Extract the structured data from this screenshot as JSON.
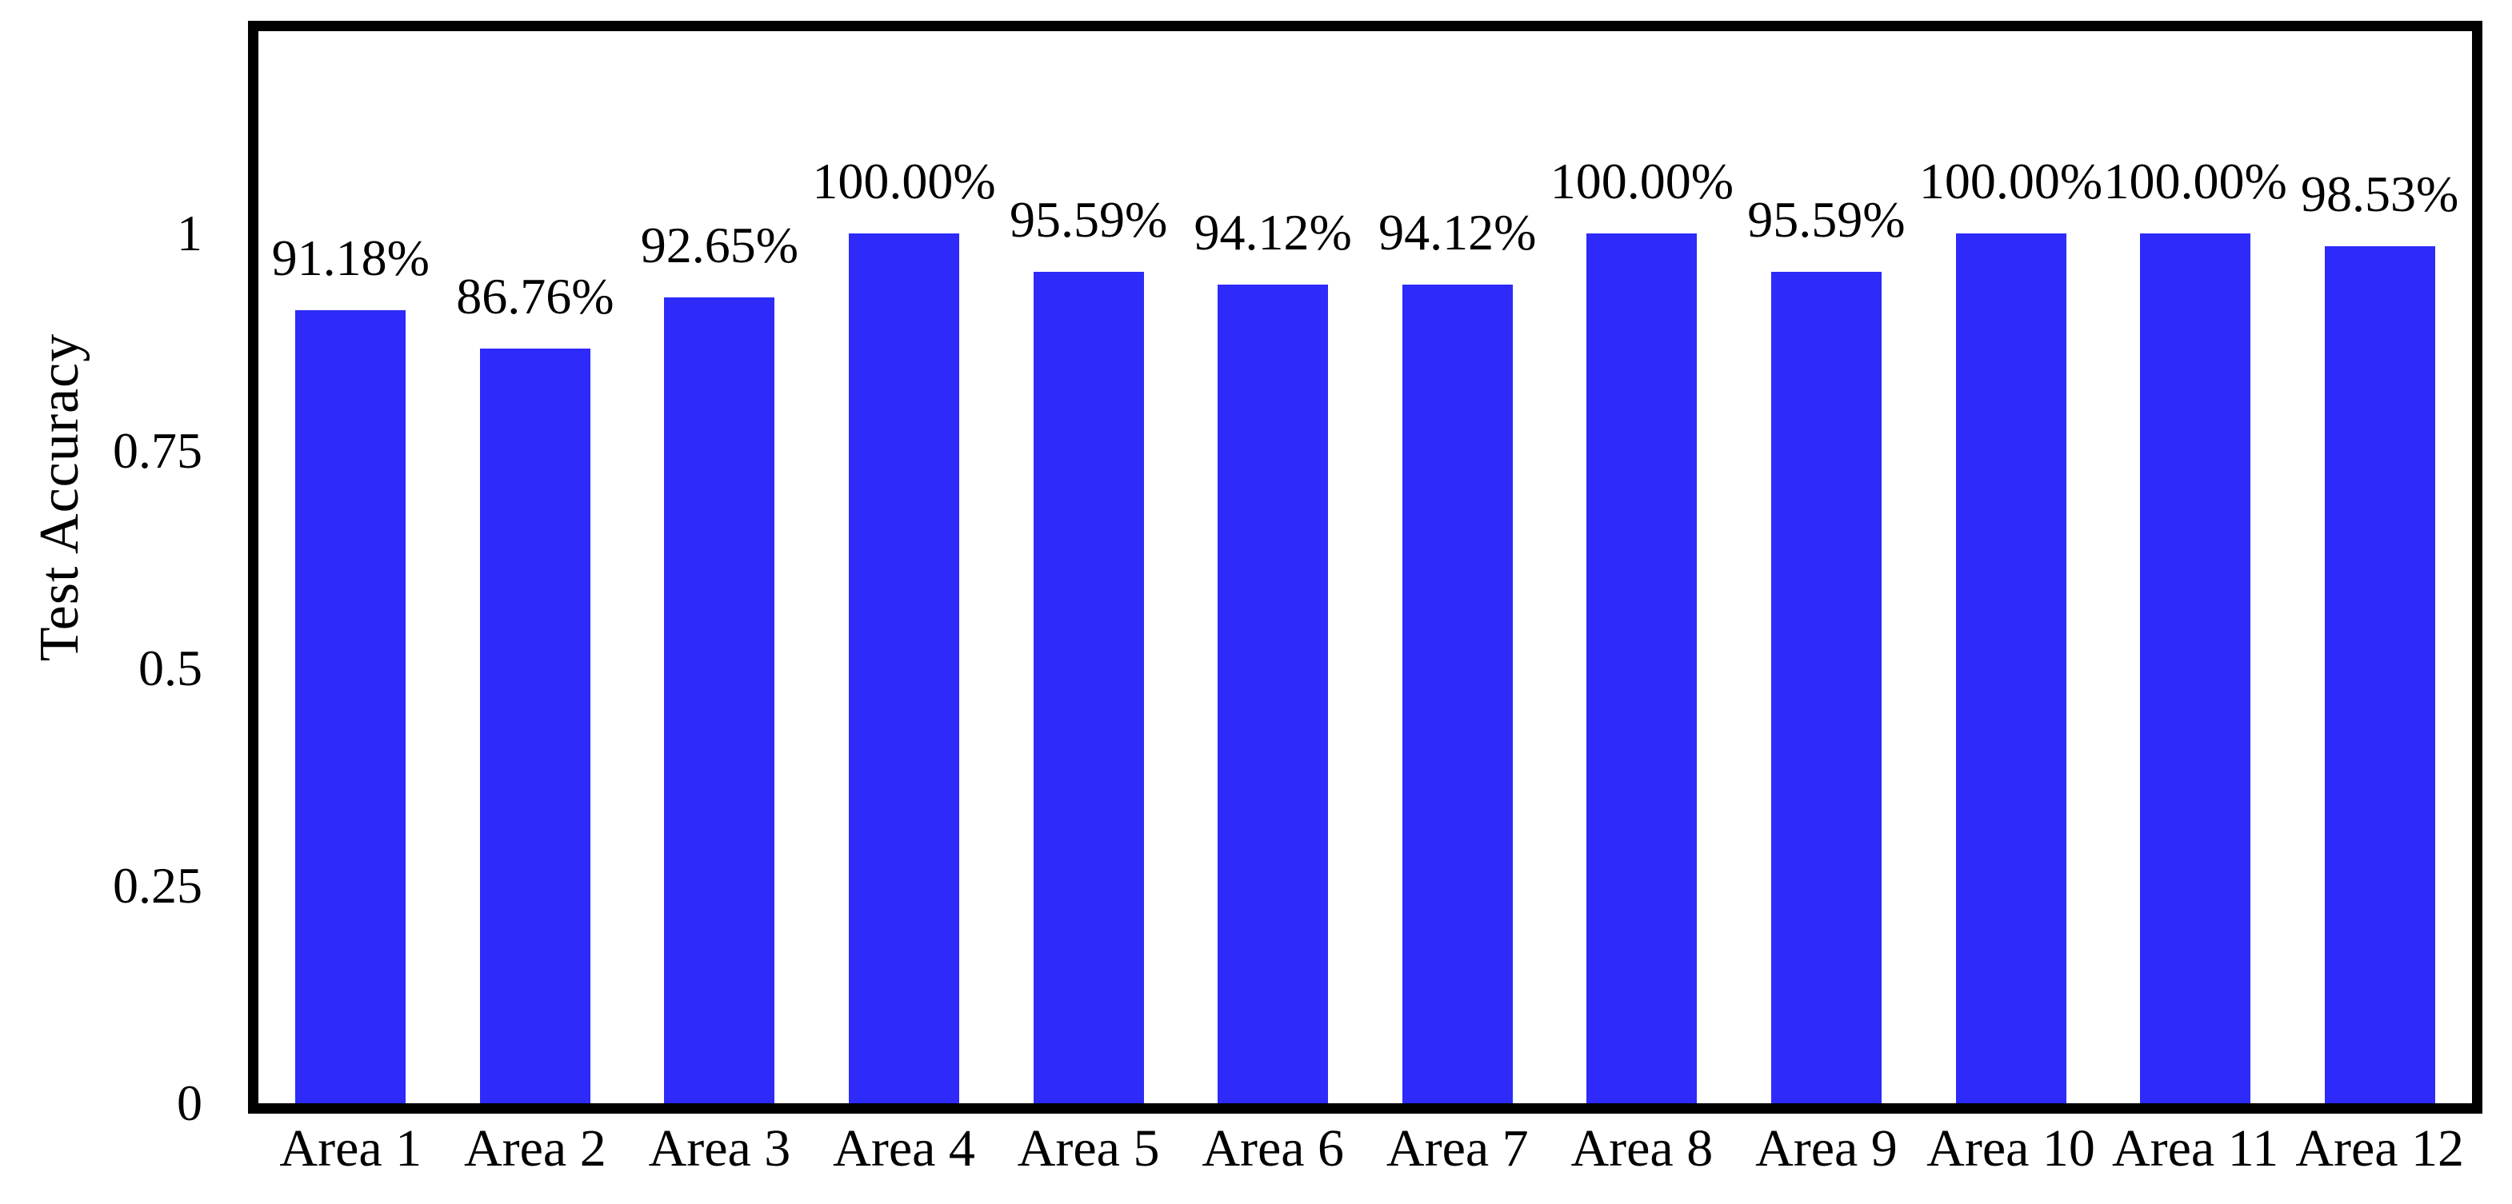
{
  "chart_data": {
    "type": "bar",
    "title": "",
    "xlabel": "",
    "ylabel": "Test Accuracy",
    "categories": [
      "Area 1",
      "Area 2",
      "Area 3",
      "Area 4",
      "Area 5",
      "Area 6",
      "Area 7",
      "Area 8",
      "Area 9",
      "Area 10",
      "Area 11",
      "Area 12"
    ],
    "values": [
      0.9118,
      0.8676,
      0.9265,
      1.0,
      0.9559,
      0.9412,
      0.9412,
      1.0,
      0.9559,
      1.0,
      1.0,
      0.9853
    ],
    "bar_labels": [
      "91.18%",
      "86.76%",
      "92.65%",
      "100.00%",
      "95.59%",
      "94.12%",
      "94.12%",
      "100.00%",
      "95.59%",
      "100.00%",
      "100.00%",
      "98.53%"
    ],
    "ytick_labels": [
      "0",
      "0.25",
      "0.5",
      "0.75",
      "1"
    ],
    "ytick_values": [
      0,
      0.25,
      0.5,
      0.75,
      1
    ],
    "ylim": [
      0,
      1.233
    ],
    "grid": false,
    "legend_position": "none",
    "colors": {
      "bar": "#2D2AFA",
      "frame": "#000000",
      "text": "#000000",
      "background": "#FFFFFF"
    }
  }
}
